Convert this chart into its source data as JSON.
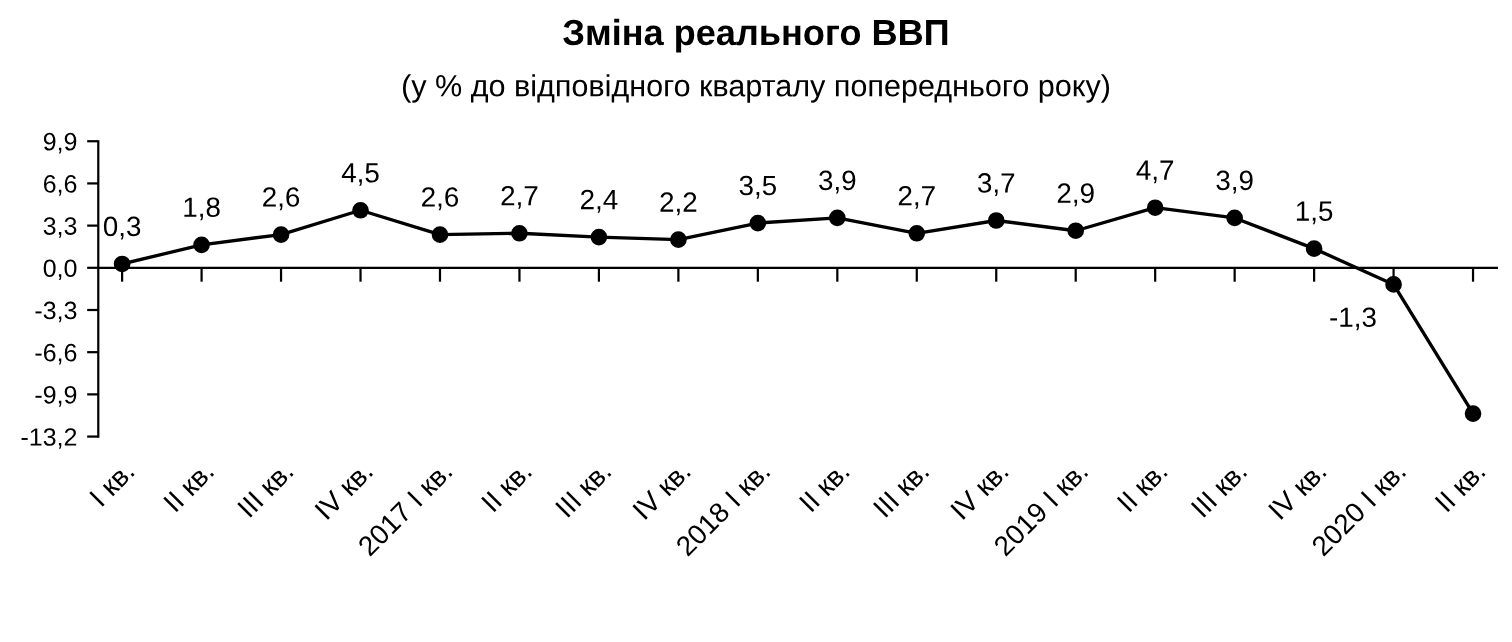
{
  "chart_data": {
    "type": "line",
    "title": "Зміна реального ВВП",
    "subtitle": "(у % до відповідного кварталу попереднього року)",
    "categories": [
      "I кв.",
      "II кв.",
      "III кв.",
      "IV кв.",
      "2017 I кв.",
      "II кв.",
      "III кв.",
      "IV кв.",
      "2018 I кв.",
      "II кв.",
      "III кв.",
      "IV кв.",
      "2019 I кв.",
      "II кв.",
      "III кв.",
      "IV кв.",
      "2020 I кв.",
      "II кв."
    ],
    "series": [
      {
        "color": "#000000",
        "values": [
          0.3,
          1.8,
          2.6,
          4.5,
          2.6,
          2.7,
          2.4,
          2.2,
          3.5,
          3.9,
          2.7,
          3.7,
          2.9,
          4.7,
          3.9,
          1.5,
          -1.3,
          -11.4
        ],
        "value_labels": [
          "0,3",
          "1,8",
          "2,6",
          "4,5",
          "2,6",
          "2,7",
          "2,4",
          "2,2",
          "3,5",
          "3,9",
          "2,7",
          "3,7",
          "2,9",
          "4,7",
          "3,9",
          "1,5",
          "-1,3",
          null
        ]
      }
    ],
    "ylim": [
      -13.2,
      9.9
    ],
    "yticks": [
      {
        "value": -13.2,
        "label": "-13,2"
      },
      {
        "value": -9.9,
        "label": "-9,9"
      },
      {
        "value": -6.6,
        "label": "-6,6"
      },
      {
        "value": -3.3,
        "label": "-3,3"
      },
      {
        "value": 0,
        "label": "0,0"
      },
      {
        "value": 3.3,
        "label": "3,3"
      },
      {
        "value": 6.6,
        "label": "6,6"
      },
      {
        "value": 9.9,
        "label": "9,9"
      }
    ],
    "marker": "circle",
    "line_style": "solid",
    "legend": false
  }
}
